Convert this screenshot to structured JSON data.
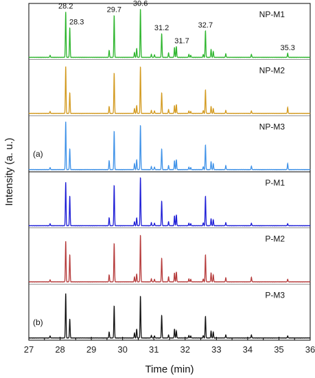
{
  "chart_data": {
    "type": "line",
    "xlabel": "Time (min)",
    "ylabel": "Intensity (a. u.)",
    "xlim": [
      27,
      36
    ],
    "x_ticks": [
      "27",
      "28",
      "29",
      "30",
      "31",
      "32",
      "33",
      "34",
      "35",
      "36"
    ],
    "grid": false,
    "peak_labels": [
      "28.2",
      "28.3",
      "29.7",
      "30.6",
      "31.2",
      "31.7",
      "32.7",
      "35.3"
    ],
    "part_labels": [
      "(a)",
      "(b)"
    ],
    "series": [
      {
        "name": "NP-M1",
        "color": "#2db52d",
        "group": "a",
        "peaks": [
          [
            27.68,
            0.04
          ],
          [
            28.18,
            0.92
          ],
          [
            28.31,
            0.6
          ],
          [
            29.57,
            0.14
          ],
          [
            29.73,
            0.85
          ],
          [
            30.38,
            0.1
          ],
          [
            30.45,
            0.18
          ],
          [
            30.57,
            0.98
          ],
          [
            30.92,
            0.06
          ],
          [
            31.02,
            0.05
          ],
          [
            31.25,
            0.48
          ],
          [
            31.47,
            0.09
          ],
          [
            31.66,
            0.2
          ],
          [
            31.72,
            0.22
          ],
          [
            32.12,
            0.06
          ],
          [
            32.18,
            0.04
          ],
          [
            32.58,
            0.06
          ],
          [
            32.65,
            0.54
          ],
          [
            32.83,
            0.16
          ],
          [
            32.9,
            0.12
          ],
          [
            33.3,
            0.07
          ],
          [
            34.12,
            0.06
          ],
          [
            35.28,
            0.08
          ]
        ]
      },
      {
        "name": "NP-M2",
        "color": "#d39a1f",
        "group": "a",
        "peaks": [
          [
            27.68,
            0.04
          ],
          [
            28.18,
            0.95
          ],
          [
            28.31,
            0.42
          ],
          [
            29.57,
            0.14
          ],
          [
            29.73,
            0.82
          ],
          [
            30.38,
            0.1
          ],
          [
            30.45,
            0.16
          ],
          [
            30.57,
            0.95
          ],
          [
            30.92,
            0.06
          ],
          [
            31.02,
            0.05
          ],
          [
            31.25,
            0.42
          ],
          [
            31.47,
            0.08
          ],
          [
            31.66,
            0.16
          ],
          [
            31.72,
            0.18
          ],
          [
            32.12,
            0.05
          ],
          [
            32.18,
            0.04
          ],
          [
            32.58,
            0.06
          ],
          [
            32.65,
            0.48
          ],
          [
            32.83,
            0.14
          ],
          [
            32.9,
            0.1
          ],
          [
            33.3,
            0.06
          ],
          [
            34.12,
            0.05
          ],
          [
            35.28,
            0.12
          ]
        ]
      },
      {
        "name": "NP-M3",
        "color": "#3f92e8",
        "group": "a",
        "peaks": [
          [
            27.68,
            0.04
          ],
          [
            28.18,
            0.97
          ],
          [
            28.31,
            0.42
          ],
          [
            29.57,
            0.18
          ],
          [
            29.73,
            0.78
          ],
          [
            30.38,
            0.12
          ],
          [
            30.45,
            0.2
          ],
          [
            30.57,
            0.9
          ],
          [
            30.92,
            0.06
          ],
          [
            31.02,
            0.05
          ],
          [
            31.25,
            0.42
          ],
          [
            31.47,
            0.08
          ],
          [
            31.66,
            0.18
          ],
          [
            31.72,
            0.2
          ],
          [
            32.12,
            0.05
          ],
          [
            32.18,
            0.04
          ],
          [
            32.58,
            0.06
          ],
          [
            32.65,
            0.5
          ],
          [
            32.83,
            0.16
          ],
          [
            32.9,
            0.12
          ],
          [
            33.3,
            0.08
          ],
          [
            34.12,
            0.07
          ],
          [
            35.28,
            0.12
          ]
        ]
      },
      {
        "name": "P-M1",
        "color": "#1d1dd6",
        "group": "b",
        "peaks": [
          [
            27.68,
            0.04
          ],
          [
            28.18,
            0.88
          ],
          [
            28.31,
            0.6
          ],
          [
            29.57,
            0.16
          ],
          [
            29.73,
            0.82
          ],
          [
            30.38,
            0.08
          ],
          [
            30.45,
            0.16
          ],
          [
            30.57,
            0.98
          ],
          [
            30.92,
            0.06
          ],
          [
            31.02,
            0.05
          ],
          [
            31.25,
            0.5
          ],
          [
            31.47,
            0.08
          ],
          [
            31.66,
            0.2
          ],
          [
            31.72,
            0.22
          ],
          [
            32.12,
            0.05
          ],
          [
            32.18,
            0.04
          ],
          [
            32.58,
            0.06
          ],
          [
            32.65,
            0.6
          ],
          [
            32.83,
            0.14
          ],
          [
            32.9,
            0.12
          ],
          [
            33.3,
            0.06
          ],
          [
            34.12,
            0.05
          ],
          [
            35.28,
            0.04
          ]
        ]
      },
      {
        "name": "P-M2",
        "color": "#b53a3a",
        "group": "b",
        "peaks": [
          [
            27.68,
            0.04
          ],
          [
            28.18,
            0.82
          ],
          [
            28.31,
            0.55
          ],
          [
            29.57,
            0.14
          ],
          [
            29.73,
            0.78
          ],
          [
            30.38,
            0.1
          ],
          [
            30.45,
            0.16
          ],
          [
            30.57,
            0.95
          ],
          [
            30.92,
            0.06
          ],
          [
            31.02,
            0.05
          ],
          [
            31.25,
            0.48
          ],
          [
            31.47,
            0.1
          ],
          [
            31.66,
            0.18
          ],
          [
            31.72,
            0.2
          ],
          [
            32.12,
            0.06
          ],
          [
            32.18,
            0.05
          ],
          [
            32.58,
            0.06
          ],
          [
            32.65,
            0.55
          ],
          [
            32.83,
            0.18
          ],
          [
            32.9,
            0.14
          ],
          [
            33.3,
            0.08
          ],
          [
            34.12,
            0.09
          ],
          [
            35.28,
            0.05
          ]
        ]
      },
      {
        "name": "P-M3",
        "color": "#111111",
        "group": "b",
        "peaks": [
          [
            27.68,
            0.04
          ],
          [
            28.18,
            0.9
          ],
          [
            28.31,
            0.38
          ],
          [
            29.57,
            0.12
          ],
          [
            29.73,
            0.65
          ],
          [
            30.38,
            0.1
          ],
          [
            30.45,
            0.18
          ],
          [
            30.57,
            0.85
          ],
          [
            30.92,
            0.05
          ],
          [
            31.02,
            0.04
          ],
          [
            31.25,
            0.46
          ],
          [
            31.47,
            0.06
          ],
          [
            31.66,
            0.18
          ],
          [
            31.72,
            0.14
          ],
          [
            32.12,
            0.05
          ],
          [
            32.18,
            0.04
          ],
          [
            32.58,
            0.05
          ],
          [
            32.65,
            0.44
          ],
          [
            32.83,
            0.14
          ],
          [
            32.9,
            0.12
          ],
          [
            33.3,
            0.06
          ],
          [
            34.12,
            0.06
          ],
          [
            35.28,
            0.04
          ]
        ]
      }
    ]
  }
}
